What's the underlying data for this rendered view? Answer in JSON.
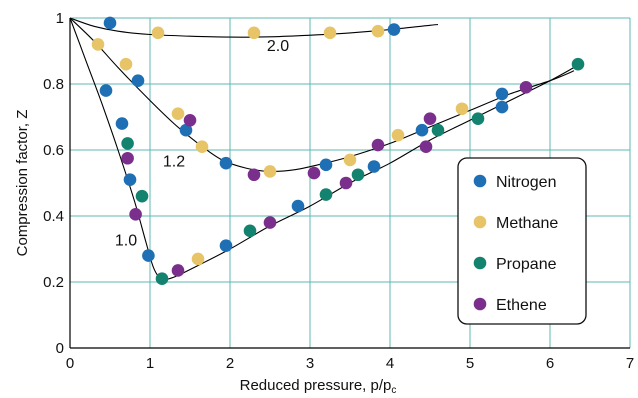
{
  "chart_data": {
    "type": "scatter",
    "xlabel": "Reduced pressure, p/p",
    "xlabel_sub": "c",
    "ylabel": "Compression factor, Z",
    "xlim": [
      0,
      7
    ],
    "ylim": [
      0,
      1
    ],
    "x_ticks": [
      "0",
      "1",
      "2",
      "3",
      "4",
      "5",
      "6",
      "7"
    ],
    "y_ticks": [
      "0",
      "0.2",
      "0.4",
      "0.6",
      "0.8",
      "1"
    ],
    "grid": true,
    "legend_position": "right",
    "curves": [
      {
        "label": "2.0",
        "label_at": [
          2.6,
          0.9
        ],
        "points": [
          [
            0,
            1
          ],
          [
            0.3,
            0.975
          ],
          [
            0.6,
            0.96
          ],
          [
            1.0,
            0.95
          ],
          [
            1.5,
            0.945
          ],
          [
            2.0,
            0.942
          ],
          [
            2.5,
            0.943
          ],
          [
            3.0,
            0.948
          ],
          [
            3.5,
            0.955
          ],
          [
            4.0,
            0.965
          ],
          [
            4.5,
            0.978
          ],
          [
            4.6,
            0.98
          ]
        ]
      },
      {
        "label": "1.2",
        "label_at": [
          1.3,
          0.55
        ],
        "points": [
          [
            0,
            1
          ],
          [
            0.3,
            0.93
          ],
          [
            0.6,
            0.85
          ],
          [
            1.0,
            0.75
          ],
          [
            1.3,
            0.68
          ],
          [
            1.6,
            0.62
          ],
          [
            1.9,
            0.57
          ],
          [
            2.2,
            0.545
          ],
          [
            2.5,
            0.535
          ],
          [
            2.8,
            0.54
          ],
          [
            3.1,
            0.555
          ],
          [
            3.5,
            0.58
          ],
          [
            4.0,
            0.62
          ],
          [
            4.5,
            0.67
          ],
          [
            5.0,
            0.72
          ],
          [
            5.5,
            0.77
          ],
          [
            6.0,
            0.81
          ],
          [
            6.3,
            0.84
          ]
        ]
      },
      {
        "label": "1.0",
        "label_at": [
          0.7,
          0.31
        ],
        "points": [
          [
            0,
            1
          ],
          [
            0.2,
            0.87
          ],
          [
            0.4,
            0.74
          ],
          [
            0.6,
            0.6
          ],
          [
            0.8,
            0.45
          ],
          [
            0.95,
            0.32
          ],
          [
            1.05,
            0.24
          ],
          [
            1.15,
            0.21
          ],
          [
            1.3,
            0.215
          ],
          [
            1.6,
            0.25
          ],
          [
            2.0,
            0.3
          ],
          [
            2.5,
            0.37
          ],
          [
            3.0,
            0.43
          ],
          [
            3.5,
            0.5
          ],
          [
            4.0,
            0.56
          ],
          [
            4.5,
            0.63
          ],
          [
            5.0,
            0.69
          ],
          [
            5.5,
            0.75
          ],
          [
            6.0,
            0.81
          ],
          [
            6.3,
            0.85
          ]
        ]
      }
    ],
    "series": [
      {
        "name": "Nitrogen",
        "color": "#1f6fb5",
        "points": [
          [
            0.5,
            0.985
          ],
          [
            0.45,
            0.78
          ],
          [
            0.65,
            0.68
          ],
          [
            0.85,
            0.81
          ],
          [
            0.75,
            0.51
          ],
          [
            0.98,
            0.28
          ],
          [
            1.45,
            0.66
          ],
          [
            1.95,
            0.56
          ],
          [
            1.95,
            0.31
          ],
          [
            2.85,
            0.43
          ],
          [
            3.2,
            0.555
          ],
          [
            3.8,
            0.55
          ],
          [
            4.05,
            0.965
          ],
          [
            4.4,
            0.66
          ],
          [
            5.4,
            0.77
          ],
          [
            5.4,
            0.73
          ]
        ]
      },
      {
        "name": "Methane",
        "color": "#e8c468",
        "points": [
          [
            0.35,
            0.92
          ],
          [
            0.7,
            0.86
          ],
          [
            1.1,
            0.955
          ],
          [
            1.35,
            0.71
          ],
          [
            1.65,
            0.61
          ],
          [
            1.6,
            0.27
          ],
          [
            2.3,
            0.955
          ],
          [
            2.5,
            0.535
          ],
          [
            3.25,
            0.955
          ],
          [
            3.5,
            0.57
          ],
          [
            3.85,
            0.96
          ],
          [
            4.1,
            0.645
          ],
          [
            4.9,
            0.725
          ]
        ]
      },
      {
        "name": "Propane",
        "color": "#13826e",
        "points": [
          [
            0.72,
            0.62
          ],
          [
            0.9,
            0.46
          ],
          [
            1.15,
            0.21
          ],
          [
            2.25,
            0.355
          ],
          [
            3.2,
            0.465
          ],
          [
            3.6,
            0.525
          ],
          [
            4.6,
            0.66
          ],
          [
            5.1,
            0.695
          ],
          [
            6.35,
            0.86
          ]
        ]
      },
      {
        "name": "Ethene",
        "color": "#7b2f8c",
        "points": [
          [
            0.72,
            0.575
          ],
          [
            0.82,
            0.405
          ],
          [
            1.35,
            0.235
          ],
          [
            1.5,
            0.69
          ],
          [
            2.3,
            0.525
          ],
          [
            2.5,
            0.38
          ],
          [
            3.05,
            0.53
          ],
          [
            3.45,
            0.5
          ],
          [
            3.85,
            0.615
          ],
          [
            4.45,
            0.61
          ],
          [
            4.5,
            0.695
          ],
          [
            5.7,
            0.79
          ]
        ]
      }
    ]
  }
}
